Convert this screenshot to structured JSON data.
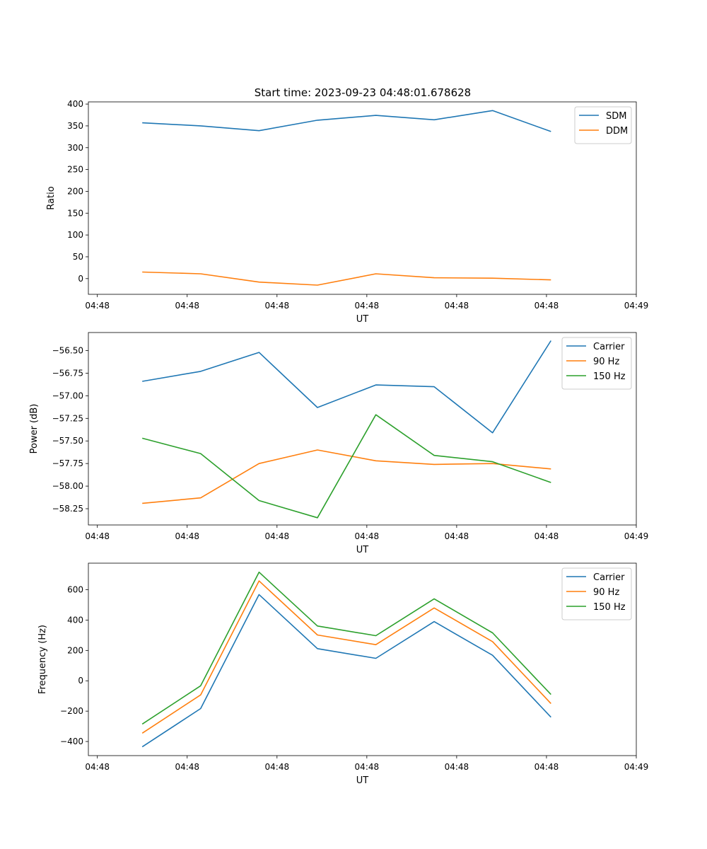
{
  "figure_title": "Start time: 2023-09-23 04:48:01.678628",
  "chart_data": [
    {
      "type": "line",
      "name": "ratio",
      "xlabel": "UT",
      "ylabel": "Ratio",
      "x_tick_labels": [
        "04:48",
        "04:48",
        "04:48",
        "04:48",
        "04:48",
        "04:48",
        "04:49"
      ],
      "x_ticks": [
        0,
        1,
        2,
        3,
        4,
        5,
        6
      ],
      "xlim": [
        -0.1,
        6.0
      ],
      "ylim": [
        -36,
        405
      ],
      "y_ticks": [
        0,
        50,
        100,
        150,
        200,
        250,
        300,
        350,
        400
      ],
      "y_tick_labels": [
        "0",
        "50",
        "100",
        "150",
        "200",
        "250",
        "300",
        "350",
        "400"
      ],
      "legend_position": "top-right",
      "x": [
        0.5,
        1.15,
        1.8,
        2.45,
        3.1,
        3.75,
        4.4,
        5.05
      ],
      "series": [
        {
          "name": "SDM",
          "color": "#1f77b4",
          "values": [
            357,
            350,
            339,
            363,
            374,
            364,
            385,
            337
          ]
        },
        {
          "name": "DDM",
          "color": "#ff7f0e",
          "values": [
            15,
            11,
            -8,
            -15,
            11,
            2,
            1,
            -3
          ]
        }
      ]
    },
    {
      "type": "line",
      "name": "power",
      "xlabel": "UT",
      "ylabel": "Power (dB)",
      "x_tick_labels": [
        "04:48",
        "04:48",
        "04:48",
        "04:48",
        "04:48",
        "04:48",
        "04:49"
      ],
      "x_ticks": [
        0,
        1,
        2,
        3,
        4,
        5,
        6
      ],
      "xlim": [
        -0.1,
        6.0
      ],
      "ylim": [
        -58.43,
        -56.3
      ],
      "y_ticks": [
        -58.25,
        -58.0,
        -57.75,
        -57.5,
        -57.25,
        -57.0,
        -56.75,
        -56.5
      ],
      "y_tick_labels": [
        "−58.25",
        "−58.00",
        "−57.75",
        "−57.50",
        "−57.25",
        "−57.00",
        "−56.75",
        "−56.50"
      ],
      "legend_position": "top-right",
      "x": [
        0.5,
        1.15,
        1.8,
        2.45,
        3.1,
        3.75,
        4.4,
        5.05
      ],
      "series": [
        {
          "name": "Carrier",
          "color": "#1f77b4",
          "values": [
            -56.84,
            -56.73,
            -56.52,
            -57.13,
            -56.88,
            -56.9,
            -57.41,
            -56.39
          ]
        },
        {
          "name": "90 Hz",
          "color": "#ff7f0e",
          "values": [
            -58.19,
            -58.13,
            -57.75,
            -57.6,
            -57.72,
            -57.76,
            -57.75,
            -57.81
          ]
        },
        {
          "name": "150 Hz",
          "color": "#2ca02c",
          "values": [
            -57.47,
            -57.64,
            -58.16,
            -58.35,
            -57.21,
            -57.66,
            -57.73,
            -57.96
          ]
        }
      ]
    },
    {
      "type": "line",
      "name": "frequency",
      "xlabel": "UT",
      "ylabel": "Frequency (Hz)",
      "x_tick_labels": [
        "04:48",
        "04:48",
        "04:48",
        "04:48",
        "04:48",
        "04:48",
        "04:49"
      ],
      "x_ticks": [
        0,
        1,
        2,
        3,
        4,
        5,
        6
      ],
      "xlim": [
        -0.1,
        6.0
      ],
      "ylim": [
        -493,
        775
      ],
      "y_ticks": [
        -400,
        -200,
        0,
        200,
        400,
        600
      ],
      "y_tick_labels": [
        "−400",
        "−200",
        "0",
        "200",
        "400",
        "600"
      ],
      "legend_position": "top-right",
      "x": [
        0.5,
        1.15,
        1.8,
        2.45,
        3.1,
        3.75,
        4.4,
        5.05
      ],
      "series": [
        {
          "name": "Carrier",
          "color": "#1f77b4",
          "values": [
            -435,
            -183,
            568,
            212,
            148,
            390,
            168,
            -240
          ]
        },
        {
          "name": "90 Hz",
          "color": "#ff7f0e",
          "values": [
            -345,
            -93,
            658,
            302,
            238,
            480,
            258,
            -150
          ]
        },
        {
          "name": "150 Hz",
          "color": "#2ca02c",
          "values": [
            -285,
            -33,
            716,
            361,
            297,
            540,
            316,
            -90
          ]
        }
      ]
    }
  ]
}
